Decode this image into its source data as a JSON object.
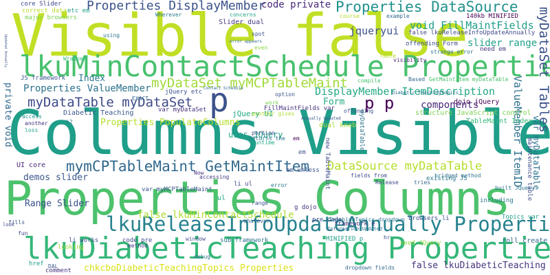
{
  "words": [
    {
      "text": "Visible false",
      "color": "#c0df25"
    },
    {
      "text": "lkuMinContactSchedule Properties",
      "color": "#48c16e"
    },
    {
      "text": "Columns Visible",
      "color": "#1f9e89"
    },
    {
      "text": "Properties Columns",
      "color": "#4cc26c"
    },
    {
      "text": "lkuDiabeticTeaching Properties",
      "color": "#35b779"
    },
    {
      "text": "p",
      "color": "#3b528b"
    },
    {
      "text": "p p",
      "color": "#440154"
    },
    {
      "text": "myDataTable myDataSet",
      "color": "#3e4a89"
    },
    {
      "text": "myDataSet myMCPTableMaint",
      "color": "#a0da39"
    },
    {
      "text": "mymCPTableMaint GetMaintItem",
      "color": "#31688e"
    },
    {
      "text": "lkuReleaseInfoUpdateAnnually Properties",
      "color": "#26828e"
    },
    {
      "text": "Properties DisplayMember",
      "color": "#3b528b"
    },
    {
      "text": "Properties DataSource",
      "color": "#21918c"
    },
    {
      "text": "code private",
      "color": "#482878"
    },
    {
      "text": "Properties ValueMember",
      "color": "#2c728e"
    },
    {
      "text": "DisplayMember ItemDescription",
      "color": "#22a884"
    },
    {
      "text": "DataSource myDataTable",
      "color": "#b5de2b"
    },
    {
      "text": "Properties PopulateColumns",
      "color": "#b5de2b"
    },
    {
      "text": "Range Slider",
      "color": "#3b528b"
    },
    {
      "text": "demos slider",
      "color": "#39568c"
    },
    {
      "text": "Index",
      "color": "#2a788e"
    },
    {
      "text": "Form",
      "color": "#22a884"
    },
    {
      "text": "components",
      "color": "#482878"
    },
    {
      "text": "jqueryui",
      "color": "#3b528b"
    },
    {
      "text": "void FillMaintFields",
      "color": "#1f9e89"
    },
    {
      "text": "slider range",
      "color": "#1fa088"
    },
    {
      "text": "false lkuMinContactSchedule",
      "color": "#addc30"
    },
    {
      "text": "chkcboDiabeticTeachingTopics Properties",
      "color": "#d8e219"
    },
    {
      "text": "false lkuDiabeticTeaching",
      "color": "#46337e"
    },
    {
      "text": "myDataSet Tables",
      "color": "#3b528b"
    },
    {
      "text": "ValueMember ItemID",
      "color": "#2d708e"
    },
    {
      "text": "private void",
      "color": "#31688e"
    },
    {
      "text": "Slider dual",
      "color": "#443983"
    },
    {
      "text": "core Slider",
      "color": "#3e4989"
    },
    {
      "text": "correct data",
      "color": "#b5de2b"
    },
    {
      "text": "Diabetic Teaching",
      "color": "#39568c"
    },
    {
      "text": "var myMCPTableMaint",
      "color": "#39568c"
    },
    {
      "text": "jQuery UI",
      "color": "#22a884"
    },
    {
      "text": "uses JQuery",
      "color": "#1fa088"
    },
    {
      "text": "dual knob",
      "color": "#a5db36"
    },
    {
      "text": "TableMaint Index",
      "color": "#35b779"
    },
    {
      "text": "structure JavaScript control",
      "color": "#7ad151"
    },
    {
      "text": "dojo jQuery",
      "color": "#440154"
    },
    {
      "text": "FillMaintFields var",
      "color": "#46327e"
    },
    {
      "text": "existing JS",
      "color": "#2a788e"
    },
    {
      "text": "including",
      "color": "#2a788e"
    },
    {
      "text": "browsers li",
      "color": "#3b528b"
    },
    {
      "text": "roll create",
      "color": "#31688e"
    },
    {
      "text": "MINIFIED p",
      "color": "#1f9e89"
    },
    {
      "text": "need JQuery",
      "color": "#8fd744"
    },
    {
      "text": "UI core",
      "color": "#482878"
    },
    {
      "text": "JS framework",
      "color": "#39568c"
    },
    {
      "text": "jQuery etc",
      "color": "#3b528b"
    },
    {
      "text": "var myDataSet",
      "color": "#46327e"
    },
    {
      "text": "framework e",
      "color": "#443983"
    },
    {
      "text": "sub framework",
      "color": "#2c728e"
    },
    {
      "text": "code pre",
      "color": "#3e4989"
    },
    {
      "text": "pre code",
      "color": "#3e4a89"
    },
    {
      "text": "li works",
      "color": "#3b528b"
    },
    {
      "text": "need em",
      "color": "#46337e"
    },
    {
      "text": "offending Form",
      "color": "#3e4a89"
    },
    {
      "text": "false lkuReleaseInfoUpdateAnnually",
      "color": "#3e4a89"
    },
    {
      "text": "140kb MINIFIED",
      "color": "#440154"
    },
    {
      "text": "major browsers",
      "color": "#7ad151"
    },
    {
      "text": "etc em",
      "color": "#1f9e89"
    },
    {
      "text": "Wherever",
      "color": "#2a788e"
    },
    {
      "text": "concerns",
      "color": "#1fa088"
    },
    {
      "text": "example",
      "color": "#31688e"
    },
    {
      "text": "course",
      "color": "#b5de2b"
    },
    {
      "text": "Based",
      "color": "#31688e"
    },
    {
      "text": "GetMaintItem myDataTable",
      "color": "#4ac16d"
    },
    {
      "text": "Release",
      "color": "#3e4989"
    },
    {
      "text": "em unless",
      "color": "#3b528b"
    },
    {
      "text": "window",
      "color": "#3e4989"
    },
    {
      "text": "accessing",
      "color": "#443983"
    },
    {
      "text": "option",
      "color": "#3b528b"
    },
    {
      "text": "compile",
      "color": "#48c16e"
    },
    {
      "text": "even",
      "color": "#8fd744"
    },
    {
      "text": "spot",
      "color": "#3b528b"
    },
    {
      "text": "using",
      "color": "#2a788e"
    },
    {
      "text": "Now",
      "color": "#46327e"
    },
    {
      "text": "ul",
      "color": "#22a884"
    },
    {
      "text": "li ul",
      "color": "#3e4989"
    },
    {
      "text": "hr",
      "color": "#3e4a89"
    },
    {
      "text": "em",
      "color": "#440154"
    },
    {
      "text": "h2",
      "color": "#2a788e"
    },
    {
      "text": "portion",
      "color": "#3e4989"
    },
    {
      "text": "returns the",
      "color": "#2c728e"
    },
    {
      "text": "tries",
      "color": "#31688e"
    },
    {
      "text": "range",
      "color": "#3b528b"
    },
    {
      "text": "looking",
      "color": "#a0da39"
    },
    {
      "text": "comment",
      "color": "#46327e"
    },
    {
      "text": "debug",
      "color": "#2a788e"
    },
    {
      "text": "href",
      "color": "#1f9e89"
    },
    {
      "text": "method",
      "color": "#443983"
    },
    {
      "text": "whatever",
      "color": "#31688e"
    },
    {
      "text": "Topics var",
      "color": "#1f9e89"
    },
    {
      "text": "Table",
      "color": "#b5de2b"
    },
    {
      "text": "loss",
      "color": "#1f9e89"
    },
    {
      "text": "fun",
      "color": "#3e4989"
    },
    {
      "text": "work",
      "color": "#7ad151"
    },
    {
      "text": "access",
      "color": "#21918c"
    },
    {
      "text": "another",
      "color": "#46327e"
    },
    {
      "text": "another gives",
      "color": "#addc30"
    },
    {
      "text": "offending",
      "color": "#3b528b"
    },
    {
      "text": "runtime",
      "color": "#22a884"
    },
    {
      "text": "error",
      "color": "#2a788e"
    },
    {
      "text": "Wrapper",
      "color": "#35b779"
    },
    {
      "text": "EXACT",
      "color": "#31688e"
    },
    {
      "text": "DAL",
      "color": "#39568c"
    },
    {
      "text": "dropdown fields",
      "color": "#31688e"
    },
    {
      "text": "built JQuery",
      "color": "#2c728e"
    },
    {
      "text": "g dojo",
      "color": "#46327e"
    },
    {
      "text": "visibility",
      "color": "#482878"
    },
    {
      "text": "strange error",
      "color": "#2c728e"
    },
    {
      "text": "fields from",
      "color": "#3e4a89"
    },
    {
      "text": "new TableMaint",
      "color": "#3e4989"
    },
    {
      "text": "bridged method",
      "color": "#2c728e"
    },
    {
      "text": "TeachingTopics dropdown",
      "color": "#2c728e"
    },
    {
      "text": "Information Updated",
      "color": "#2c728e"
    },
    {
      "text": "maintenance table",
      "color": "#3e4a89"
    },
    {
      "text": "Diabetic TeachingTopics",
      "color": "#2c728e"
    },
    {
      "text": "Contact Schedule",
      "color": "#31688e"
    },
    {
      "text": "error appears",
      "color": "#31688e"
    },
    {
      "text": "Annually Updated",
      "color": "#39568c"
    },
    {
      "text": "Updated Annually",
      "color": "#39568c"
    },
    {
      "text": "var myDataTable",
      "color": "#3e4989"
    },
    {
      "text": "myDataTable",
      "color": "#2c728e"
    },
    {
      "text": "em",
      "color": "#3b528b"
    },
    {
      "text": "fills",
      "color": "#3b528b"
    },
    {
      "text": "look",
      "color": "#3e4989"
    }
  ]
}
